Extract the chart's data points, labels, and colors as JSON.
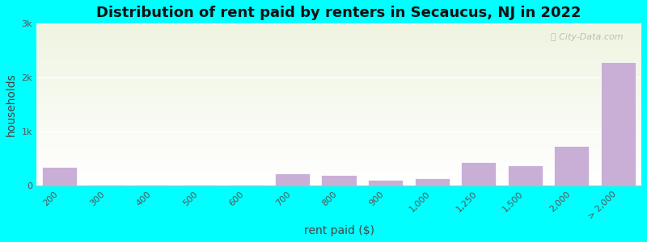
{
  "title": "Distribution of rent paid by renters in Secaucus, NJ in 2022",
  "xlabel": "rent paid ($)",
  "ylabel": "households",
  "categories": [
    "200",
    "300",
    "400",
    "500",
    "600",
    "700",
    "800",
    "900",
    "1,000",
    "1,250",
    "1,500",
    "2,000",
    "> 2,000"
  ],
  "values": [
    350,
    25,
    20,
    15,
    20,
    220,
    200,
    100,
    130,
    430,
    380,
    730,
    2280
  ],
  "bar_color": "#c9aed6",
  "background_color": "#00ffff",
  "plot_bg_gradient_top": "#eef4e0",
  "plot_bg_gradient_bottom": "#ffffff",
  "ylim": [
    0,
    3000
  ],
  "yticks": [
    0,
    1000,
    2000,
    3000
  ],
  "ytick_labels": [
    "0",
    "1k",
    "2k",
    "3k"
  ],
  "title_fontsize": 13,
  "axis_label_fontsize": 10,
  "watermark_text": "City-Data.com"
}
